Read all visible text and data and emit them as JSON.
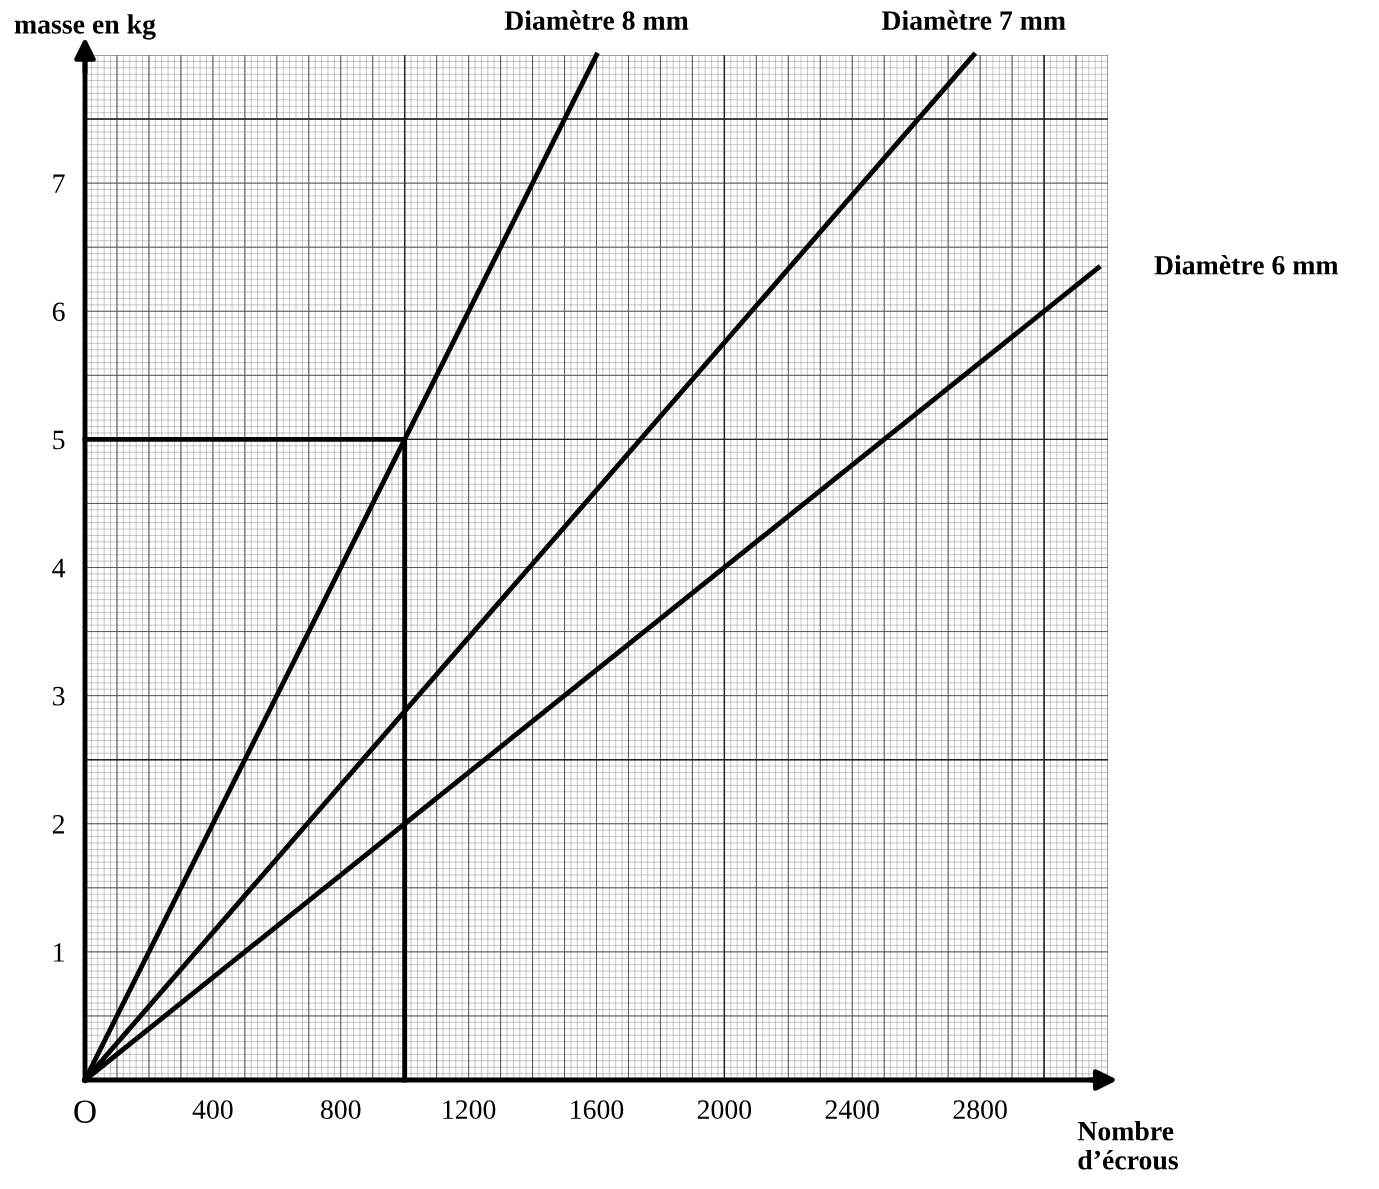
{
  "chart_data": {
    "type": "line",
    "xlabel": "Nombre\nd’écrous",
    "ylabel": "masse en kg",
    "xlim": [
      0,
      3200
    ],
    "ylim": [
      0,
      8
    ],
    "xticks": [
      {
        "value": 0,
        "label": "O"
      },
      400,
      800,
      1200,
      1600,
      2000,
      2400,
      2800
    ],
    "yticks": [
      1,
      2,
      3,
      4,
      5,
      6,
      7
    ],
    "grid": true,
    "line_style": "solid",
    "marker": "none",
    "series": [
      {
        "name": "Diamètre 8 mm",
        "color": "#000000",
        "x": [
          0,
          1600
        ],
        "values": [
          0,
          8
        ]
      },
      {
        "name": "Diamètre 7 mm",
        "color": "#000000",
        "x": [
          0,
          2780
        ],
        "values": [
          0,
          8
        ]
      },
      {
        "name": "Diamètre 6 mm",
        "color": "#000000",
        "x": [
          0,
          3170
        ],
        "values": [
          0,
          6.34
        ]
      },
      {
        "color": "#000000",
        "x": [
          0,
          1000,
          1000
        ],
        "values": [
          5,
          5,
          0
        ]
      }
    ]
  }
}
